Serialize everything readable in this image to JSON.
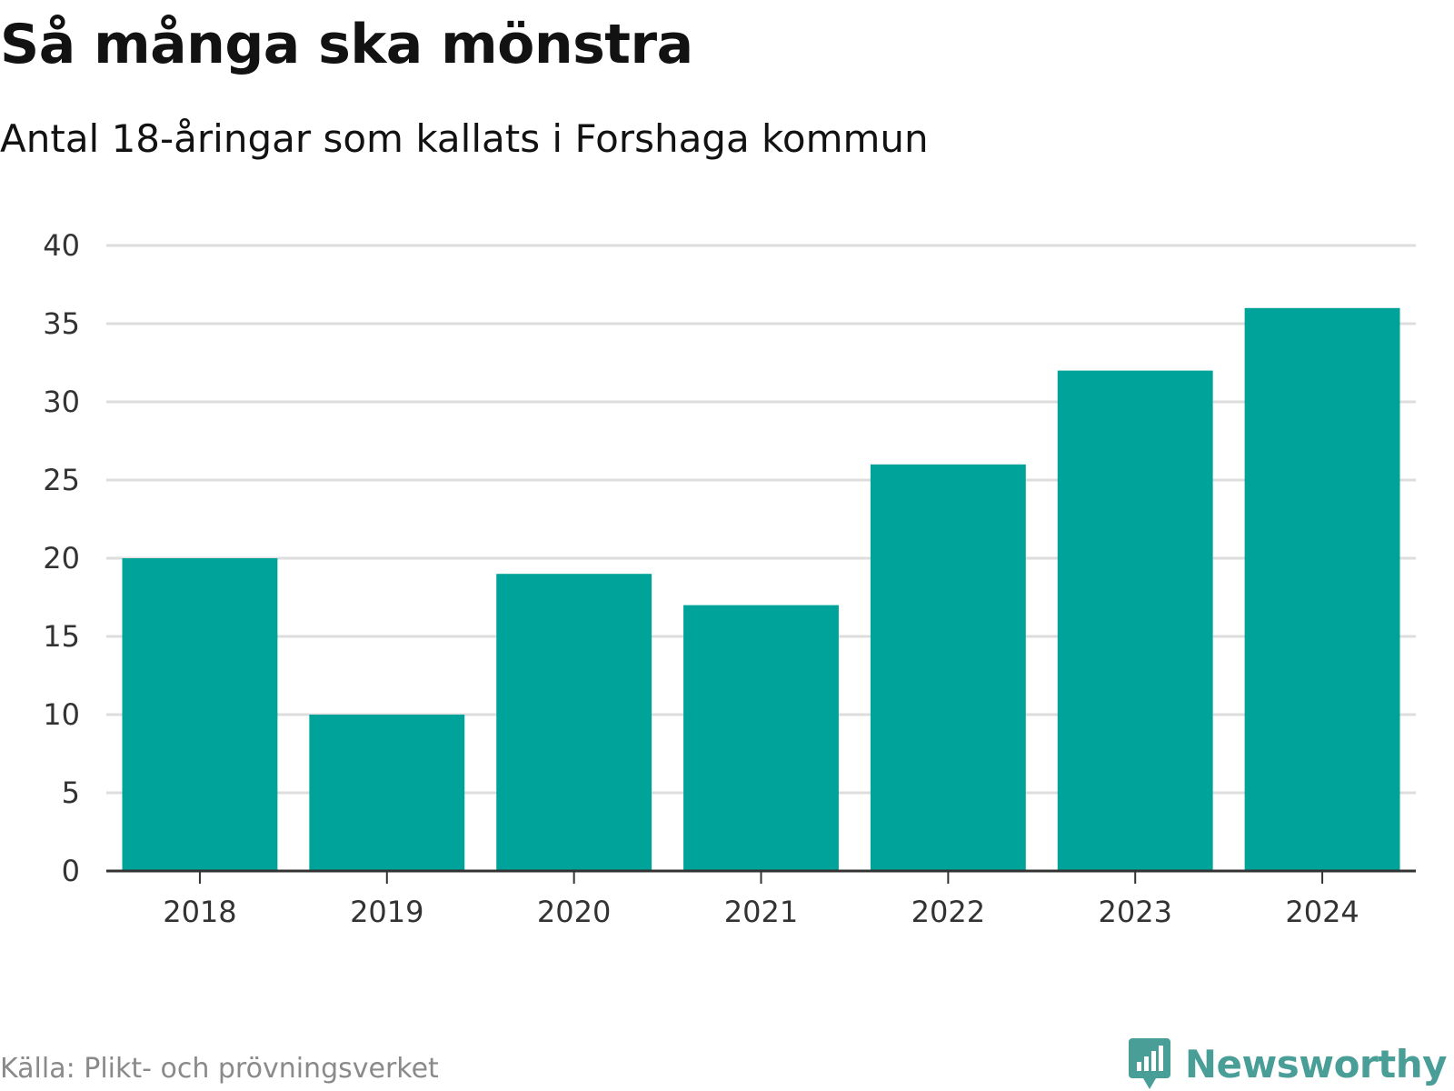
{
  "title": "Så många ska mönstra",
  "subtitle": "Antal 18-åringar som kallats i Forshaga kommun",
  "source": "Källa: Plikt- och prövningsverket",
  "brand": {
    "name": "Newsworthy",
    "icon": "newsworthy-logo-icon"
  },
  "colors": {
    "bar": "#00a399",
    "grid": "#dddddd",
    "axis": "#333333",
    "brand": "#4a9e98"
  },
  "chart_data": {
    "type": "bar",
    "title": "Så många ska mönstra",
    "subtitle": "Antal 18-åringar som kallats i Forshaga kommun",
    "categories": [
      "2018",
      "2019",
      "2020",
      "2021",
      "2022",
      "2023",
      "2024"
    ],
    "values": [
      20,
      10,
      19,
      17,
      26,
      32,
      36
    ],
    "yticks": [
      0,
      5,
      10,
      15,
      20,
      25,
      30,
      35,
      40
    ],
    "ylim": [
      0,
      40
    ],
    "xlabel": "",
    "ylabel": "",
    "grid": true,
    "legend": "none"
  }
}
